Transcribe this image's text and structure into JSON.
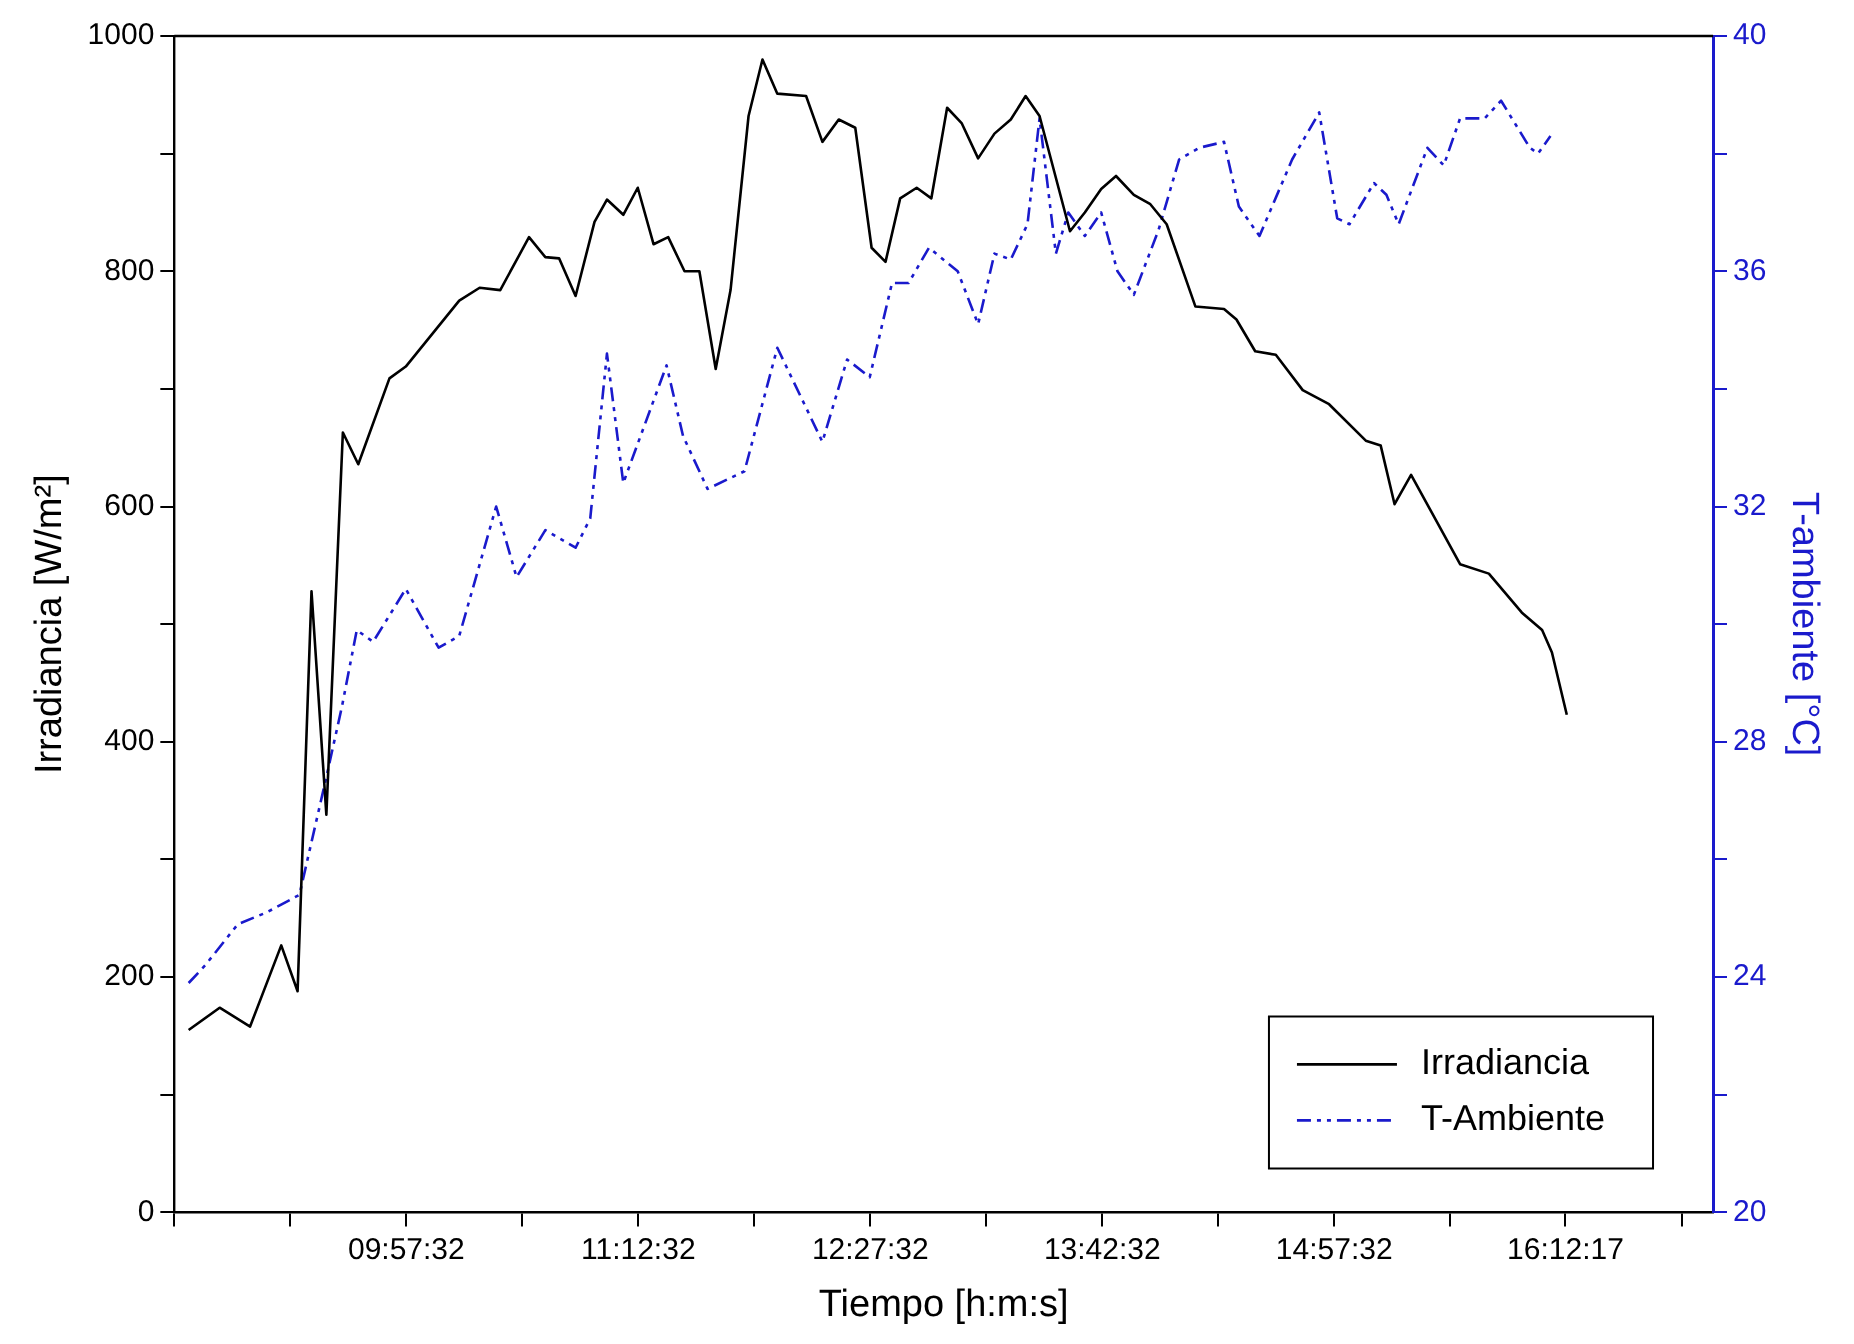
{
  "chart_data": {
    "type": "line",
    "xlabel": "Tiempo [h:m:s]",
    "ylabel": "Irradiancia [W/m²]",
    "y2label": "T-ambiente [°C]",
    "xlim": [
      8.70889,
      17.0
    ],
    "xticks": [
      {
        "value": 8.70889,
        "label": null
      },
      {
        "value": 9.33389,
        "label": null
      },
      {
        "value": 9.95889,
        "label": "09:57:32"
      },
      {
        "value": 10.58389,
        "label": null
      },
      {
        "value": 11.20889,
        "label": "11:12:32"
      },
      {
        "value": 11.83389,
        "label": null
      },
      {
        "value": 12.45889,
        "label": "12:27:32"
      },
      {
        "value": 13.08389,
        "label": null
      },
      {
        "value": 13.70889,
        "label": "13:42:32"
      },
      {
        "value": 14.33389,
        "label": null
      },
      {
        "value": 14.95889,
        "label": "14:57:32"
      },
      {
        "value": 15.58389,
        "label": null
      },
      {
        "value": 16.20472,
        "label": "16:12:17"
      },
      {
        "value": 16.83389,
        "label": null
      }
    ],
    "ylim": [
      0,
      1000
    ],
    "yticks": [
      0,
      {
        "value": 100,
        "label": null
      },
      200,
      {
        "value": 300,
        "label": null
      },
      400,
      {
        "value": 500,
        "label": null
      },
      600,
      {
        "value": 700,
        "label": null
      },
      800,
      {
        "value": 900,
        "label": null
      },
      1000
    ],
    "y2lim": [
      20,
      40
    ],
    "y2ticks": [
      20,
      {
        "value": 22,
        "label": null
      },
      24,
      {
        "value": 26,
        "label": null
      },
      28,
      {
        "value": 30,
        "label": null
      },
      32,
      {
        "value": 34,
        "label": null
      },
      36,
      {
        "value": 38,
        "label": null
      },
      40
    ],
    "grid": false,
    "legend": "bottom right",
    "marker": "none",
    "series": [
      {
        "name": "Irradiancia",
        "color": "#000000",
        "line_style": "solid",
        "x": [
          8.786,
          8.953,
          9.117,
          9.285,
          9.373,
          9.448,
          9.528,
          9.617,
          9.7,
          9.868,
          9.956,
          10.244,
          10.354,
          10.465,
          10.62,
          10.708,
          10.782,
          10.871,
          10.973,
          11.04,
          11.128,
          11.206,
          11.291,
          11.37,
          11.458,
          11.538,
          11.626,
          11.706,
          11.803,
          11.878,
          11.958,
          12.113,
          12.201,
          12.289,
          12.378,
          12.466,
          12.541,
          12.62,
          12.709,
          12.788,
          12.873,
          12.951,
          13.04,
          13.128,
          13.216,
          13.296,
          13.371,
          13.535,
          13.615,
          13.703,
          13.783,
          13.879,
          13.968,
          14.056,
          14.211,
          14.365,
          14.432,
          14.533,
          14.644,
          14.789,
          14.931,
          15.129,
          15.209,
          15.284,
          15.373,
          15.637,
          15.792,
          15.969,
          16.079,
          16.132,
          16.212
        ],
        "values": [
          155,
          174,
          158,
          227,
          188,
          528,
          338,
          663,
          636,
          709,
          719,
          775,
          786,
          784,
          829,
          812,
          811,
          779,
          842,
          861,
          848,
          871,
          823,
          829,
          800,
          800,
          717,
          784,
          932,
          980,
          951,
          949,
          910,
          929,
          922,
          820,
          808,
          862,
          871,
          862,
          939,
          926,
          896,
          917,
          929,
          949,
          932,
          834,
          850,
          870,
          881,
          865,
          857,
          840,
          770,
          768,
          759,
          732,
          729,
          699,
          687,
          656,
          652,
          602,
          627,
          551,
          543,
          510,
          495,
          476,
          423
        ]
      },
      {
        "name": "T-Ambiente",
        "color": "#1a1acc",
        "axis": "y2",
        "line_style": "dashed",
        "x": [
          8.786,
          8.875,
          9.051,
          9.206,
          9.383,
          9.528,
          9.612,
          9.692,
          9.78,
          9.956,
          10.133,
          10.244,
          10.443,
          10.553,
          10.708,
          10.871,
          10.95,
          11.04,
          11.128,
          11.361,
          11.45,
          11.582,
          11.781,
          11.958,
          12.201,
          12.334,
          12.456,
          12.576,
          12.665,
          12.775,
          12.93,
          13.04,
          13.128,
          13.216,
          13.306,
          13.371,
          13.459,
          13.526,
          13.615,
          13.703,
          13.791,
          13.879,
          14.012,
          14.123,
          14.232,
          14.365,
          14.445,
          14.556,
          14.732,
          14.878,
          14.975,
          15.041,
          15.173,
          15.24,
          15.306,
          15.461,
          15.549,
          15.637,
          15.77,
          15.858,
          16.013,
          16.057,
          16.124
        ],
        "values": [
          23.9,
          24.2,
          24.9,
          25.1,
          25.4,
          27.4,
          28.6,
          29.9,
          29.7,
          30.6,
          29.6,
          29.8,
          32.0,
          30.8,
          31.6,
          31.3,
          31.8,
          34.6,
          32.4,
          34.4,
          33.2,
          32.3,
          32.6,
          34.7,
          33.1,
          34.5,
          34.2,
          35.8,
          35.8,
          36.4,
          36.0,
          35.1,
          36.3,
          36.2,
          36.8,
          38.6,
          36.3,
          37.0,
          36.6,
          37.0,
          36.0,
          35.6,
          36.7,
          37.9,
          38.1,
          38.2,
          37.1,
          36.6,
          37.9,
          38.7,
          36.9,
          36.8,
          37.5,
          37.3,
          36.8,
          38.1,
          37.8,
          38.6,
          38.6,
          38.9,
          38.1,
          38.0,
          38.3
        ]
      }
    ]
  }
}
